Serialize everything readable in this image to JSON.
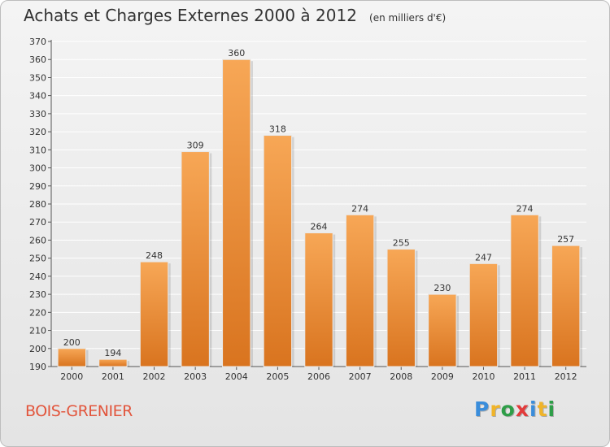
{
  "chart_data": {
    "type": "bar",
    "title": "Achats et Charges Externes 2000 à 2012",
    "subtitle": "(en milliers d'€)",
    "categories": [
      "2000",
      "2001",
      "2002",
      "2003",
      "2004",
      "2005",
      "2006",
      "2007",
      "2008",
      "2009",
      "2010",
      "2011",
      "2012"
    ],
    "values": [
      200,
      194,
      248,
      309,
      360,
      318,
      264,
      274,
      255,
      230,
      247,
      274,
      257
    ],
    "ylim": [
      190,
      370
    ],
    "ytick_step": 10,
    "grid": true,
    "legend": "none",
    "colors": {
      "bar_top": "#f7a756",
      "bar_bottom": "#d9741f"
    }
  },
  "location": "BOIS-GRENIER",
  "brand": {
    "text": "Proxiti",
    "letters": [
      {
        "char": "P",
        "color": "#3a8ddb"
      },
      {
        "char": "r",
        "color": "#f0b429"
      },
      {
        "char": "o",
        "color": "#2e9e48"
      },
      {
        "char": "x",
        "color": "#e23b3b"
      },
      {
        "char": "i",
        "color": "#3a8ddb"
      },
      {
        "char": "t",
        "color": "#f0b429"
      },
      {
        "char": "i",
        "color": "#2e9e48"
      }
    ]
  }
}
